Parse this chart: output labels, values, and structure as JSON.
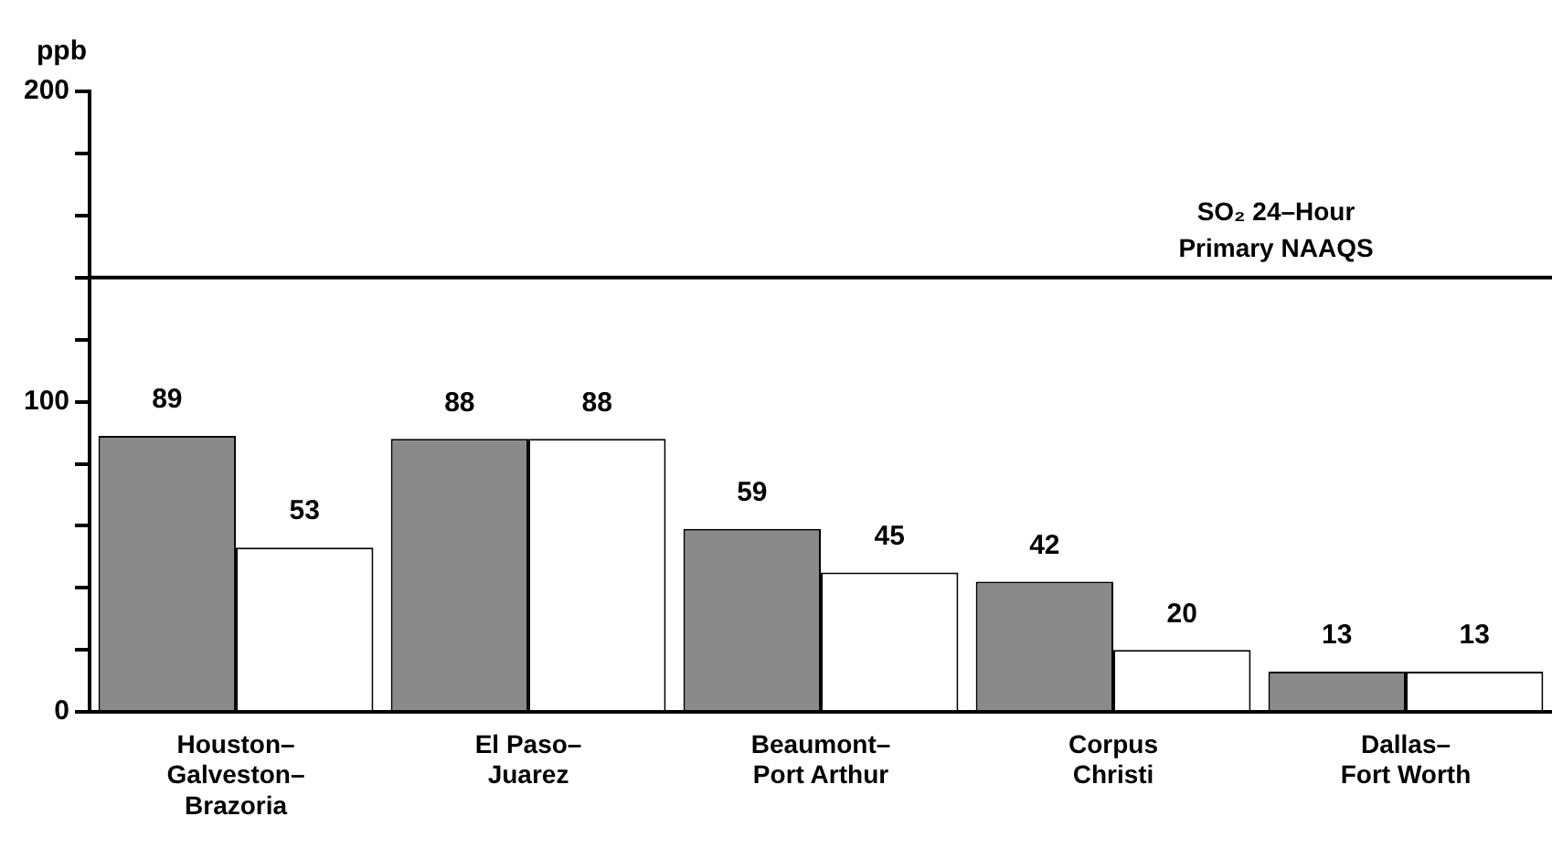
{
  "chart_data": {
    "type": "bar",
    "ylabel": "ppb",
    "categories": [
      "Houston–\nGalveston–\nBrazoria",
      "El Paso–\nJuarez",
      "Beaumont–\nPort Arthur",
      "Corpus\nChristi",
      "Dallas–\nFort Worth"
    ],
    "series": [
      {
        "color": "#8a8a8a",
        "values": [
          89,
          88,
          59,
          42,
          13
        ]
      },
      {
        "color": "#ffffff",
        "values": [
          53,
          88,
          45,
          20,
          13
        ]
      }
    ],
    "ylim": [
      0,
      200
    ],
    "yticks": [
      0,
      {
        "value": 20,
        "label": null
      },
      {
        "value": 40,
        "label": null
      },
      {
        "value": 60,
        "label": null
      },
      {
        "value": 80,
        "label": null
      },
      100,
      {
        "value": 120,
        "label": null
      },
      {
        "value": 140,
        "label": null
      },
      {
        "value": 160,
        "label": null
      },
      {
        "value": 180,
        "label": null
      },
      200
    ],
    "ref_lines": [
      {
        "axis": "y",
        "value": 140,
        "label": "SO₂ 24–Hour\nPrimary NAAQS",
        "color": "#000000"
      }
    ],
    "data_labels": true,
    "grid": false,
    "legend": false
  }
}
